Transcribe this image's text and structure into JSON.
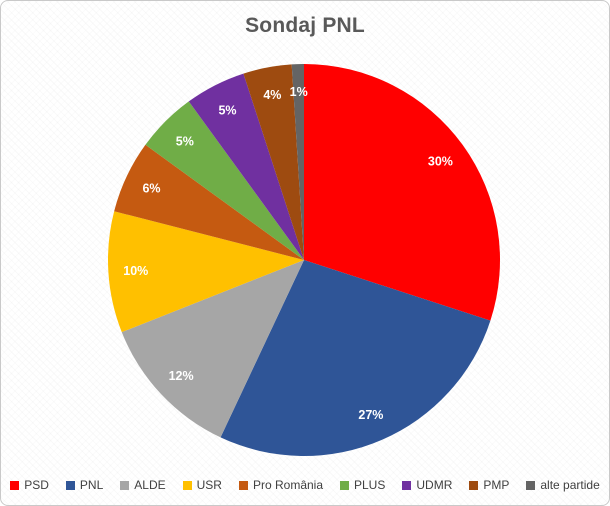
{
  "page": {
    "background": "#ffffff",
    "border_color": "#c9c9c9"
  },
  "chart_data": {
    "type": "pie",
    "title": "Sondaj PNL",
    "title_color": "#595959",
    "categories": [
      "PSD",
      "PNL",
      "ALDE",
      "USR",
      "Pro România",
      "PLUS",
      "UDMR",
      "PMP",
      "alte partide"
    ],
    "values": [
      30,
      27,
      12,
      10,
      6,
      5,
      5,
      4,
      1
    ],
    "data_labels": [
      "30%",
      "27%",
      "12%",
      "10%",
      "6%",
      "5%",
      "5%",
      "4%",
      "1%"
    ],
    "colors": [
      "#ff0000",
      "#2f5597",
      "#a6a6a6",
      "#ffc000",
      "#c55a11",
      "#70ad47",
      "#7030a0",
      "#9e4b10",
      "#646464"
    ],
    "data_label_color": "#ffffff",
    "start_angle_deg": 0,
    "direction": "clockwise",
    "legend_position": "bottom",
    "legend_text_color": "#404040",
    "grid": false
  }
}
